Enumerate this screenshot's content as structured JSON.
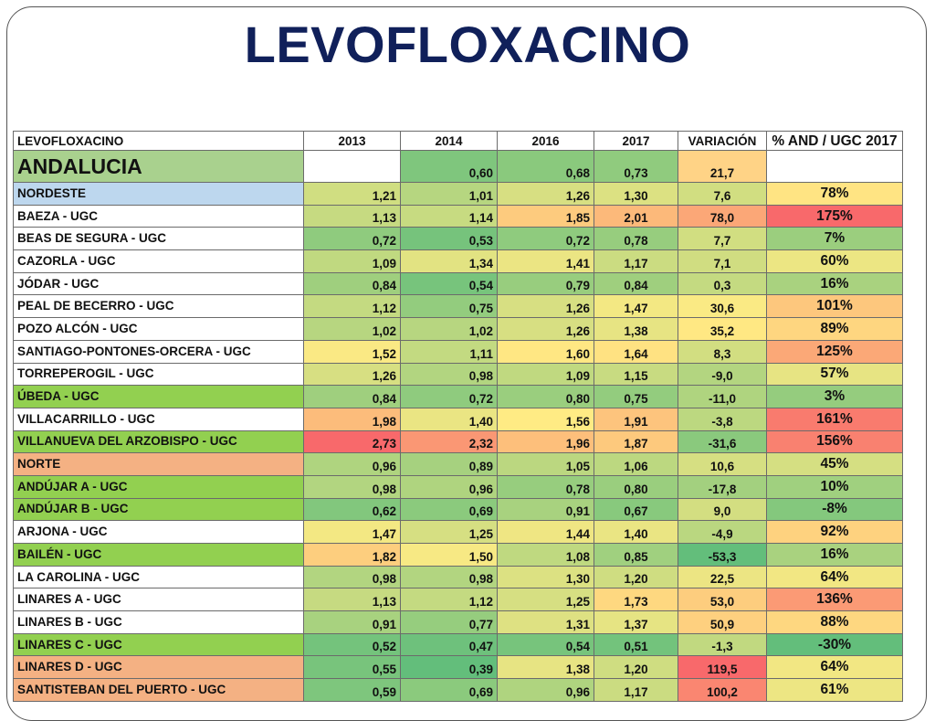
{
  "title": "LEVOFLOXACINO",
  "table": {
    "header": [
      "LEVOFLOXACINO",
      "2013",
      "2014",
      "2016",
      "2017",
      "VARIACIÓN",
      "% AND / UGC 2017"
    ],
    "rows": [
      {
        "name": "ANDALUCIA",
        "v2013": "",
        "v2014": "0,60",
        "v2016": "0,68",
        "v2017": "0,73",
        "variacion": "21,7",
        "pct": ""
      },
      {
        "name": "NORDESTE",
        "v2013": "1,21",
        "v2014": "1,01",
        "v2016": "1,26",
        "v2017": "1,30",
        "variacion": "7,6",
        "pct": "78%"
      },
      {
        "name": "BAEZA - UGC",
        "v2013": "1,13",
        "v2014": "1,14",
        "v2016": "1,85",
        "v2017": "2,01",
        "variacion": "78,0",
        "pct": "175%"
      },
      {
        "name": "BEAS DE SEGURA - UGC",
        "v2013": "0,72",
        "v2014": "0,53",
        "v2016": "0,72",
        "v2017": "0,78",
        "variacion": "7,7",
        "pct": "7%"
      },
      {
        "name": "CAZORLA - UGC",
        "v2013": "1,09",
        "v2014": "1,34",
        "v2016": "1,41",
        "v2017": "1,17",
        "variacion": "7,1",
        "pct": "60%"
      },
      {
        "name": "JÓDAR - UGC",
        "v2013": "0,84",
        "v2014": "0,54",
        "v2016": "0,79",
        "v2017": "0,84",
        "variacion": "0,3",
        "pct": "16%"
      },
      {
        "name": "PEAL DE BECERRO - UGC",
        "v2013": "1,12",
        "v2014": "0,75",
        "v2016": "1,26",
        "v2017": "1,47",
        "variacion": "30,6",
        "pct": "101%"
      },
      {
        "name": "POZO ALCÓN - UGC",
        "v2013": "1,02",
        "v2014": "1,02",
        "v2016": "1,26",
        "v2017": "1,38",
        "variacion": "35,2",
        "pct": "89%"
      },
      {
        "name": "SANTIAGO-PONTONES-ORCERA - UGC",
        "v2013": "1,52",
        "v2014": "1,11",
        "v2016": "1,60",
        "v2017": "1,64",
        "variacion": "8,3",
        "pct": "125%"
      },
      {
        "name": "TORREPEROGIL - UGC",
        "v2013": "1,26",
        "v2014": "0,98",
        "v2016": "1,09",
        "v2017": "1,15",
        "variacion": "-9,0",
        "pct": "57%"
      },
      {
        "name": "ÚBEDA - UGC",
        "v2013": "0,84",
        "v2014": "0,72",
        "v2016": "0,80",
        "v2017": "0,75",
        "variacion": "-11,0",
        "pct": "3%"
      },
      {
        "name": "VILLACARRILLO - UGC",
        "v2013": "1,98",
        "v2014": "1,40",
        "v2016": "1,56",
        "v2017": "1,91",
        "variacion": "-3,8",
        "pct": "161%"
      },
      {
        "name": "VILLANUEVA DEL ARZOBISPO - UGC",
        "v2013": "2,73",
        "v2014": "2,32",
        "v2016": "1,96",
        "v2017": "1,87",
        "variacion": "-31,6",
        "pct": "156%"
      },
      {
        "name": "NORTE",
        "v2013": "0,96",
        "v2014": "0,89",
        "v2016": "1,05",
        "v2017": "1,06",
        "variacion": "10,6",
        "pct": "45%"
      },
      {
        "name": "ANDÚJAR A - UGC",
        "v2013": "0,98",
        "v2014": "0,96",
        "v2016": "0,78",
        "v2017": "0,80",
        "variacion": "-17,8",
        "pct": "10%"
      },
      {
        "name": "ANDÚJAR B - UGC",
        "v2013": "0,62",
        "v2014": "0,69",
        "v2016": "0,91",
        "v2017": "0,67",
        "variacion": "9,0",
        "pct": "-8%"
      },
      {
        "name": "ARJONA - UGC",
        "v2013": "1,47",
        "v2014": "1,25",
        "v2016": "1,44",
        "v2017": "1,40",
        "variacion": "-4,9",
        "pct": "92%"
      },
      {
        "name": "BAILÉN - UGC",
        "v2013": "1,82",
        "v2014": "1,50",
        "v2016": "1,08",
        "v2017": "0,85",
        "variacion": "-53,3",
        "pct": "16%"
      },
      {
        "name": "LA CAROLINA - UGC",
        "v2013": "0,98",
        "v2014": "0,98",
        "v2016": "1,30",
        "v2017": "1,20",
        "variacion": "22,5",
        "pct": "64%"
      },
      {
        "name": "LINARES A - UGC",
        "v2013": "1,13",
        "v2014": "1,12",
        "v2016": "1,25",
        "v2017": "1,73",
        "variacion": "53,0",
        "pct": "136%"
      },
      {
        "name": "LINARES B - UGC",
        "v2013": "0,91",
        "v2014": "0,77",
        "v2016": "1,31",
        "v2017": "1,37",
        "variacion": "50,9",
        "pct": "88%"
      },
      {
        "name": "LINARES C - UGC",
        "v2013": "0,52",
        "v2014": "0,47",
        "v2016": "0,54",
        "v2017": "0,51",
        "variacion": "-1,3",
        "pct": "-30%"
      },
      {
        "name": "LINARES D - UGC",
        "v2013": "0,55",
        "v2014": "0,39",
        "v2016": "1,38",
        "v2017": "1,20",
        "variacion": "119,5",
        "pct": "64%"
      },
      {
        "name": "SANTISTEBAN DEL PUERTO - UGC",
        "v2013": "0,59",
        "v2014": "0,69",
        "v2016": "0,96",
        "v2017": "1,17",
        "variacion": "100,2",
        "pct": "61%"
      }
    ],
    "name_cell_colors": {
      "ANDALUCIA": "#a9d18e",
      "NORDESTE": "#bdd7ee",
      "ÚBEDA - UGC": "#92d050",
      "VILLANUEVA DEL ARZOBISPO - UGC": "#92d050",
      "NORTE": "#f4b183",
      "ANDÚJAR A - UGC": "#92d050",
      "ANDÚJAR B - UGC": "#92d050",
      "BAILÉN - UGC": "#92d050",
      "LINARES C - UGC": "#92d050",
      "LINARES D - UGC": "#f4b183",
      "SANTISTEBAN DEL PUERTO - UGC": "#f4b183"
    },
    "heatmap_scale": {
      "low": "#63be7b",
      "mid": "#ffeb84",
      "high": "#f8696b"
    }
  }
}
